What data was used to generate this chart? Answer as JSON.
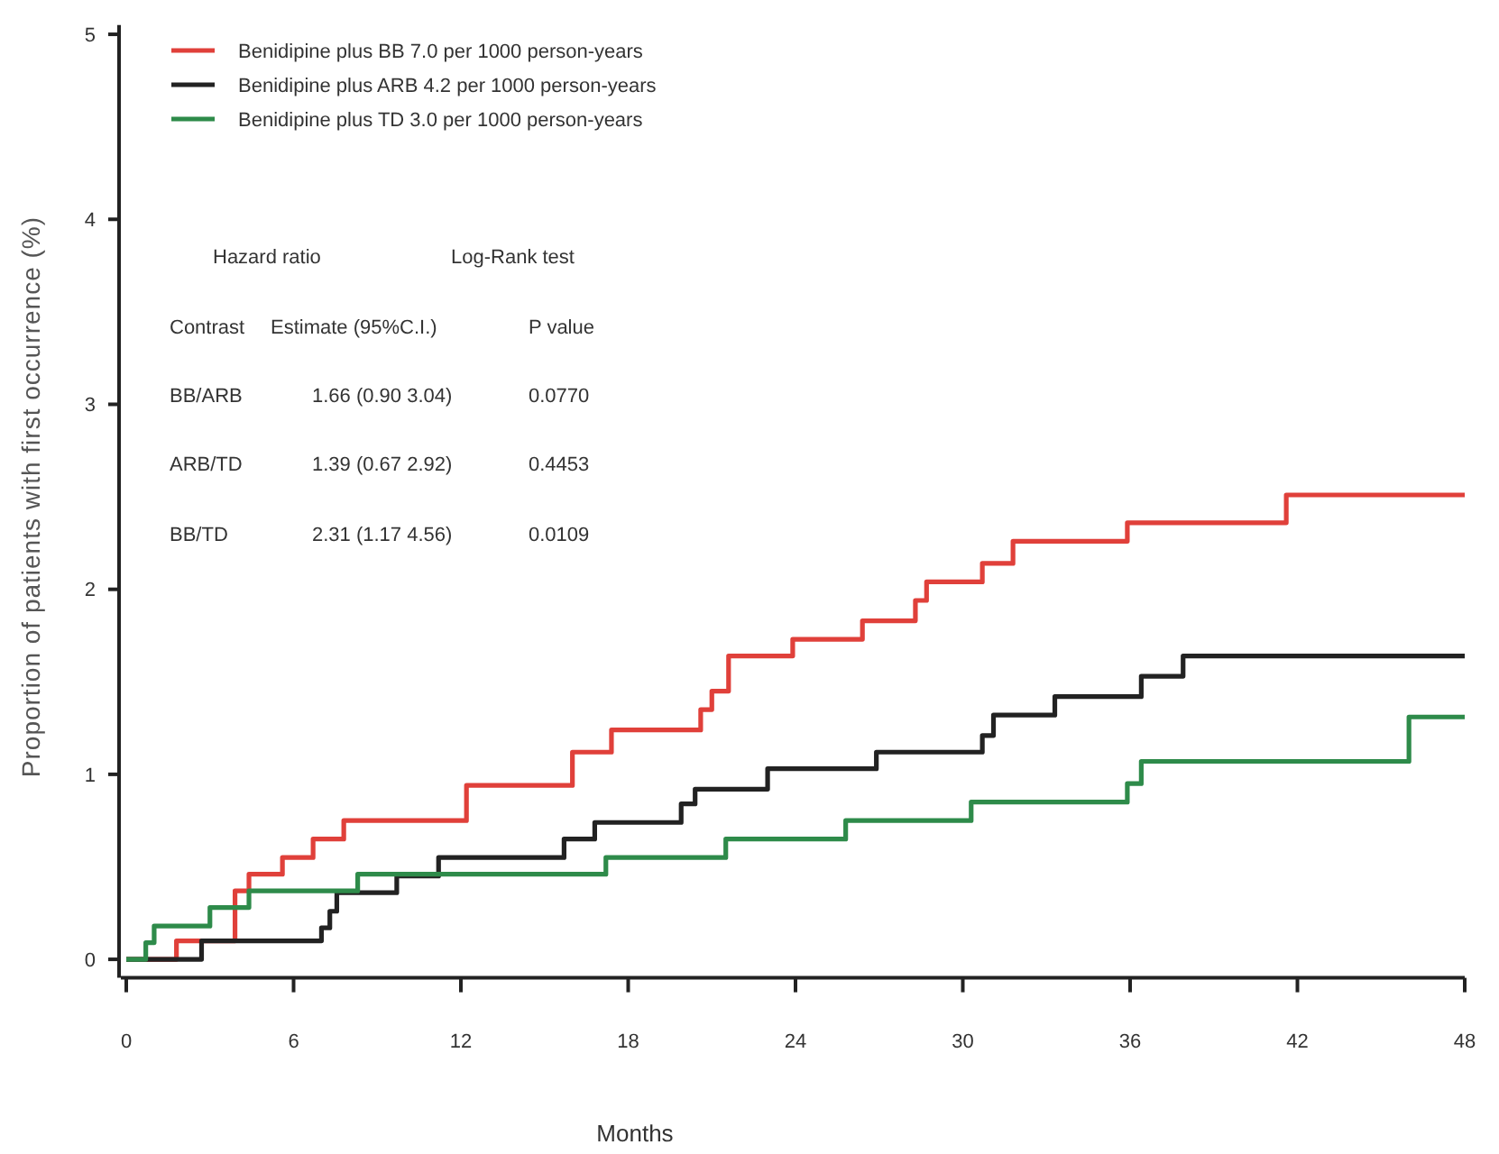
{
  "chart_data": {
    "type": "step",
    "xlabel": "Months",
    "ylabel": "Proportion of patients with first occurrence (%)",
    "xlim": [
      0,
      48
    ],
    "xticks": [
      0,
      6,
      12,
      18,
      24,
      30,
      36,
      42,
      48
    ],
    "ylim": [
      -0.1,
      5.05
    ],
    "yticks": [
      0,
      1,
      2,
      3,
      4,
      5
    ],
    "grid": false,
    "legend": "top left",
    "series": [
      {
        "name": "Benidipine plus BB 7.0 per 1000 person-years",
        "color": "#e0403a",
        "x": [
          0,
          1.8,
          3.9,
          4.4,
          5.6,
          6.7,
          7.8,
          12.2,
          16.0,
          17.4,
          20.6,
          21.0,
          21.6,
          23.9,
          26.4,
          28.3,
          28.7,
          30.7,
          31.8,
          35.9,
          41.6,
          48
        ],
        "values": [
          0,
          0.1,
          0.37,
          0.46,
          0.55,
          0.65,
          0.75,
          0.94,
          1.12,
          1.24,
          1.35,
          1.45,
          1.64,
          1.73,
          1.83,
          1.94,
          2.04,
          2.14,
          2.26,
          2.36,
          2.51,
          2.51
        ]
      },
      {
        "name": "Benidipine plus ARB 4.2 per 1000 person-years",
        "color": "#222222",
        "x": [
          0,
          2.7,
          7.0,
          7.3,
          7.55,
          9.7,
          11.2,
          15.7,
          16.8,
          19.9,
          20.4,
          23.0,
          26.9,
          30.7,
          31.1,
          33.3,
          36.4,
          37.9,
          48
        ],
        "values": [
          0,
          0.1,
          0.17,
          0.26,
          0.36,
          0.45,
          0.55,
          0.65,
          0.74,
          0.84,
          0.92,
          1.03,
          1.12,
          1.21,
          1.32,
          1.42,
          1.53,
          1.64,
          1.64
        ]
      },
      {
        "name": "Benidipine plus TD 3.0 per 1000 person-years",
        "color": "#2e8b4a",
        "x": [
          0,
          0.7,
          1.0,
          3.0,
          4.4,
          8.3,
          17.2,
          21.5,
          25.8,
          30.3,
          35.9,
          36.4,
          46.0,
          48
        ],
        "values": [
          0,
          0.09,
          0.18,
          0.28,
          0.37,
          0.46,
          0.55,
          0.65,
          0.75,
          0.85,
          0.95,
          1.07,
          1.31,
          1.31
        ]
      }
    ],
    "annotations": [
      "Hazard ratio",
      "Log-Rank test",
      "Contrast",
      "Estimate (95%C.I.)",
      "P value",
      "BB/ARB",
      "1.66 (0.90 3.04)",
      "0.0770",
      "ARB/TD",
      "1.39 (0.67 2.92)",
      "0.4453",
      "BB/TD",
      "2.31 (1.17 4.56)",
      "0.0109"
    ]
  }
}
